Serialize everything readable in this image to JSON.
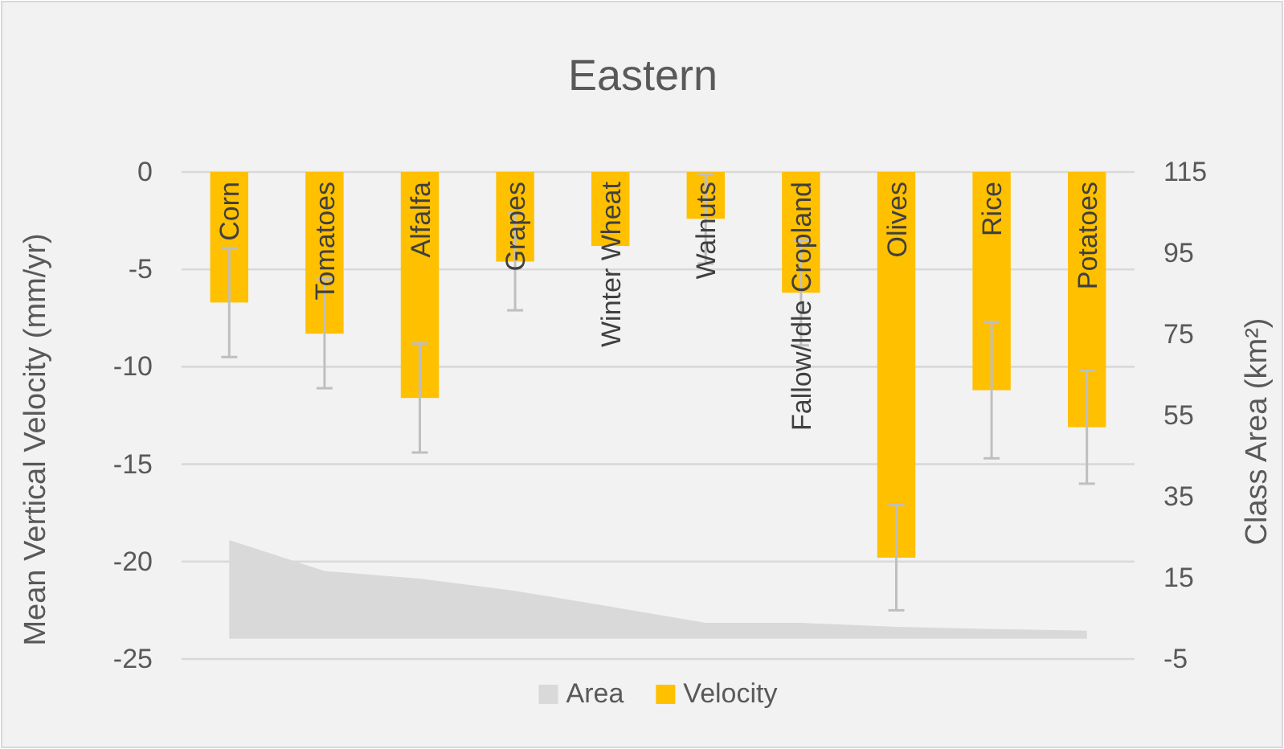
{
  "chart_data": {
    "type": "bar",
    "title": "Eastern",
    "ylabel": "Mean Vertical Velocity (mm/yr)",
    "y2label": "Class Area (km²)",
    "categories": [
      "Corn",
      "Tomatoes",
      "Alfalfa",
      "Grapes",
      "Winter Wheat",
      "Walnuts",
      "Fallow/Idle Cropland",
      "Olives",
      "Rice",
      "Potatoes"
    ],
    "series": [
      {
        "name": "Area",
        "type": "area",
        "axis": "y2",
        "color": "#d9d9d9",
        "values": [
          24.3,
          16.7,
          14.8,
          11.8,
          7.9,
          3.9,
          3.9,
          2.9,
          2.4,
          2.0
        ]
      },
      {
        "name": "Velocity",
        "color": "#ffc000",
        "values": [
          -6.7,
          -8.3,
          -11.6,
          -4.6,
          -3.8,
          -2.4,
          -6.2,
          -19.8,
          -11.2,
          -13.1
        ],
        "errors": [
          2.8,
          2.8,
          2.8,
          2.5,
          null,
          2.3,
          2.7,
          2.7,
          3.5,
          2.9
        ]
      }
    ],
    "ylim": [
      -25,
      0
    ],
    "yticks": [
      -25,
      -20,
      -15,
      -10,
      -5,
      0
    ],
    "y2lim": [
      -5,
      115
    ],
    "y2ticks": [
      -5,
      15,
      35,
      55,
      75,
      95,
      115
    ],
    "grid": "y",
    "legend": "bottom"
  }
}
